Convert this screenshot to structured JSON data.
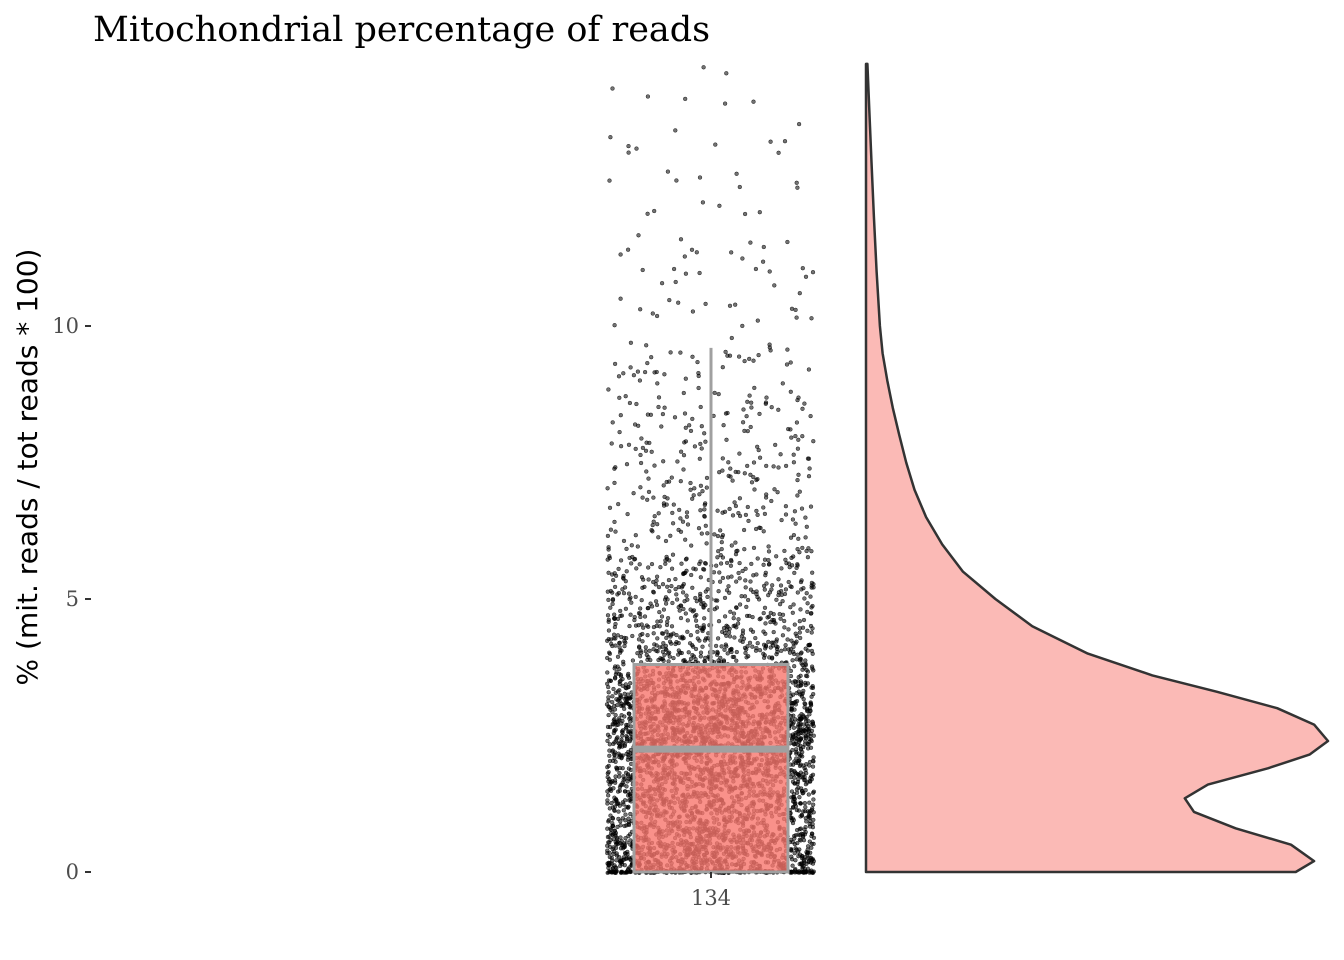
{
  "chart_data": {
    "type": "raincloud",
    "title": "Mitochondrial percentage of reads",
    "ylabel": "% (mit. reads / tot reads * 100)",
    "xlabel": "",
    "categories": [
      "134"
    ],
    "ylim": [
      0,
      14.8
    ],
    "yticks": [
      {
        "value": 0,
        "label": "0"
      },
      {
        "value": 5,
        "label": "5"
      },
      {
        "value": 10,
        "label": "10"
      }
    ],
    "grid": false,
    "legend": "none",
    "boxplot": {
      "category": "134",
      "q1": 0,
      "median": 2.25,
      "q3": 3.8,
      "whisker_low": 0,
      "whisker_high": 9.6,
      "fill": "#F8766D",
      "outline": "#a0a0a0"
    },
    "points": {
      "color": "#000000",
      "approx_count": 4200,
      "distribution_note": "dense 0-4, thinning to ~14.8"
    },
    "density": {
      "fill": "#F8766D",
      "outline": "#333333",
      "profile": [
        {
          "y": 0.0,
          "d": 0.93
        },
        {
          "y": 0.2,
          "d": 0.97
        },
        {
          "y": 0.5,
          "d": 0.92
        },
        {
          "y": 0.8,
          "d": 0.8
        },
        {
          "y": 1.1,
          "d": 0.71
        },
        {
          "y": 1.35,
          "d": 0.69
        },
        {
          "y": 1.6,
          "d": 0.74
        },
        {
          "y": 1.9,
          "d": 0.87
        },
        {
          "y": 2.15,
          "d": 0.96
        },
        {
          "y": 2.4,
          "d": 1.0
        },
        {
          "y": 2.7,
          "d": 0.97
        },
        {
          "y": 3.0,
          "d": 0.89
        },
        {
          "y": 3.3,
          "d": 0.76
        },
        {
          "y": 3.6,
          "d": 0.62
        },
        {
          "y": 4.0,
          "d": 0.48
        },
        {
          "y": 4.5,
          "d": 0.36
        },
        {
          "y": 5.0,
          "d": 0.28
        },
        {
          "y": 5.5,
          "d": 0.21
        },
        {
          "y": 6.0,
          "d": 0.165
        },
        {
          "y": 6.5,
          "d": 0.13
        },
        {
          "y": 7.0,
          "d": 0.105
        },
        {
          "y": 7.5,
          "d": 0.087
        },
        {
          "y": 8.0,
          "d": 0.072
        },
        {
          "y": 8.5,
          "d": 0.058
        },
        {
          "y": 9.0,
          "d": 0.046
        },
        {
          "y": 9.5,
          "d": 0.036
        },
        {
          "y": 10.0,
          "d": 0.03
        },
        {
          "y": 11.0,
          "d": 0.023
        },
        {
          "y": 12.0,
          "d": 0.017
        },
        {
          "y": 13.0,
          "d": 0.012
        },
        {
          "y": 14.0,
          "d": 0.007
        },
        {
          "y": 14.8,
          "d": 0.003
        }
      ]
    }
  }
}
